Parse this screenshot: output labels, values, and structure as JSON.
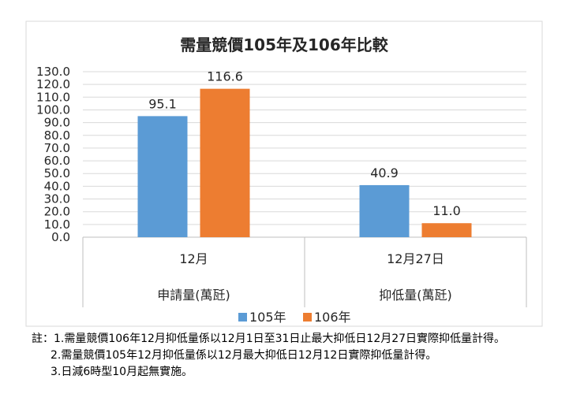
{
  "chart_data": {
    "type": "bar",
    "title": "需量競價105年及106年比較",
    "categories": [
      {
        "top": "12月",
        "bottom": "申請量(萬瓩)"
      },
      {
        "top": "12月27日",
        "bottom": "抑低量(萬瓩)"
      }
    ],
    "series": [
      {
        "name": "105年",
        "color": "#5b9bd5",
        "values": [
          95.1,
          40.9
        ],
        "labels": [
          "95.1",
          "40.9"
        ]
      },
      {
        "name": "106年",
        "color": "#ed7d31",
        "values": [
          116.6,
          11.0
        ],
        "labels": [
          "116.6",
          "11.0"
        ]
      }
    ],
    "ylim": [
      0,
      130
    ],
    "yticks": [
      "0.0",
      "10.0",
      "20.0",
      "30.0",
      "40.0",
      "50.0",
      "60.0",
      "70.0",
      "80.0",
      "90.0",
      "100.0",
      "110.0",
      "120.0",
      "130.0"
    ],
    "grid": true,
    "legend_position": "bottom"
  },
  "notes": [
    "註：1.需量競價106年12月抑低量係以12月1日至31日止最大抑低日12月27日實際抑低量計得。",
    "2.需量競價105年12月抑低量係以12月最大抑低日12月12日實際抑低量計得。",
    "3.日減6時型10月起無實施。"
  ]
}
